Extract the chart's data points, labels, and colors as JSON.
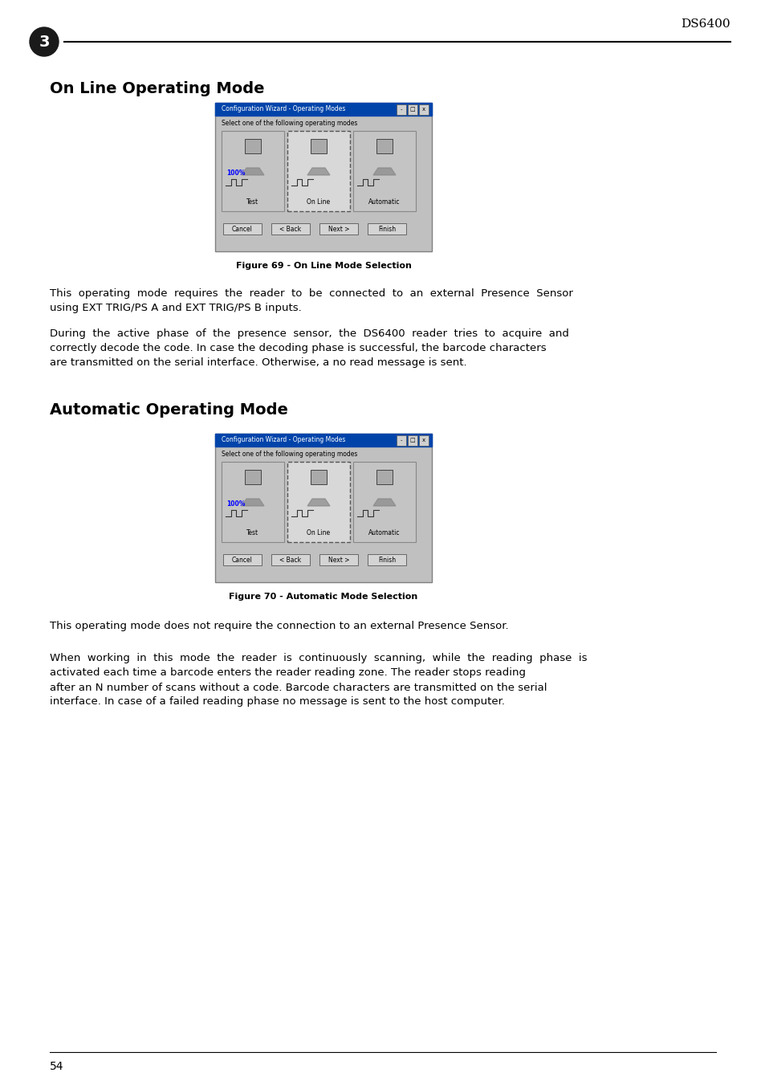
{
  "page_bg": "#ffffff",
  "header_num": "3",
  "header_brand": "DS6400",
  "section1_title": "On Line Operating Mode",
  "section2_title": "Automatic Operating Mode",
  "fig69_caption": "Figure 69 - On Line Mode Selection",
  "fig70_caption": "Figure 70 - Automatic Mode Selection",
  "para1_line1": "This  operating  mode  requires  the  reader  to  be  connected  to  an  external  Presence  Sensor",
  "para1_line2": "using EXT TRIG/PS A and EXT TRIG/PS B inputs.",
  "para2_line1": "During  the  active  phase  of  the  presence  sensor,  the  DS6400  reader  tries  to  acquire  and",
  "para2_line2": "correctly decode the code. In case the decoding phase is successful, the barcode characters",
  "para2_line3": "are transmitted on the serial interface. Otherwise, a no read message is sent.",
  "para3": "This operating mode does not require the connection to an external Presence Sensor.",
  "para4_line1": "When  working  in  this  mode  the  reader  is  continuously  scanning,  while  the  reading  phase  is",
  "para4_line2": "activated each time a barcode enters the reader reading zone. The reader stops reading",
  "para4_line3": "after an N number of scans without a code. Barcode characters are transmitted on the serial",
  "para4_line4": "interface. In case of a failed reading phase no message is sent to the host computer.",
  "footer_page": "54",
  "win_title": "Configuration Wizard - Operating Modes",
  "win_subtitle": "Select one of the following operating modes",
  "panel_labels": [
    "Test",
    "On Line",
    "Automatic"
  ],
  "btn_labels": [
    "Cancel",
    "< Back",
    "Next >",
    "Finish"
  ],
  "text_color": "#000000",
  "header_line_color": "#000000",
  "footer_line_color": "#000000",
  "circle_color": "#1a1a1a",
  "circle_text_color": "#ffffff",
  "section_title_color": "#000000",
  "win_title_bar_color": "#0044aa",
  "win_body_color": "#c0c0c0",
  "win_border_color": "#808080",
  "caption_color": "#000000",
  "percent_color": "#0000ff"
}
